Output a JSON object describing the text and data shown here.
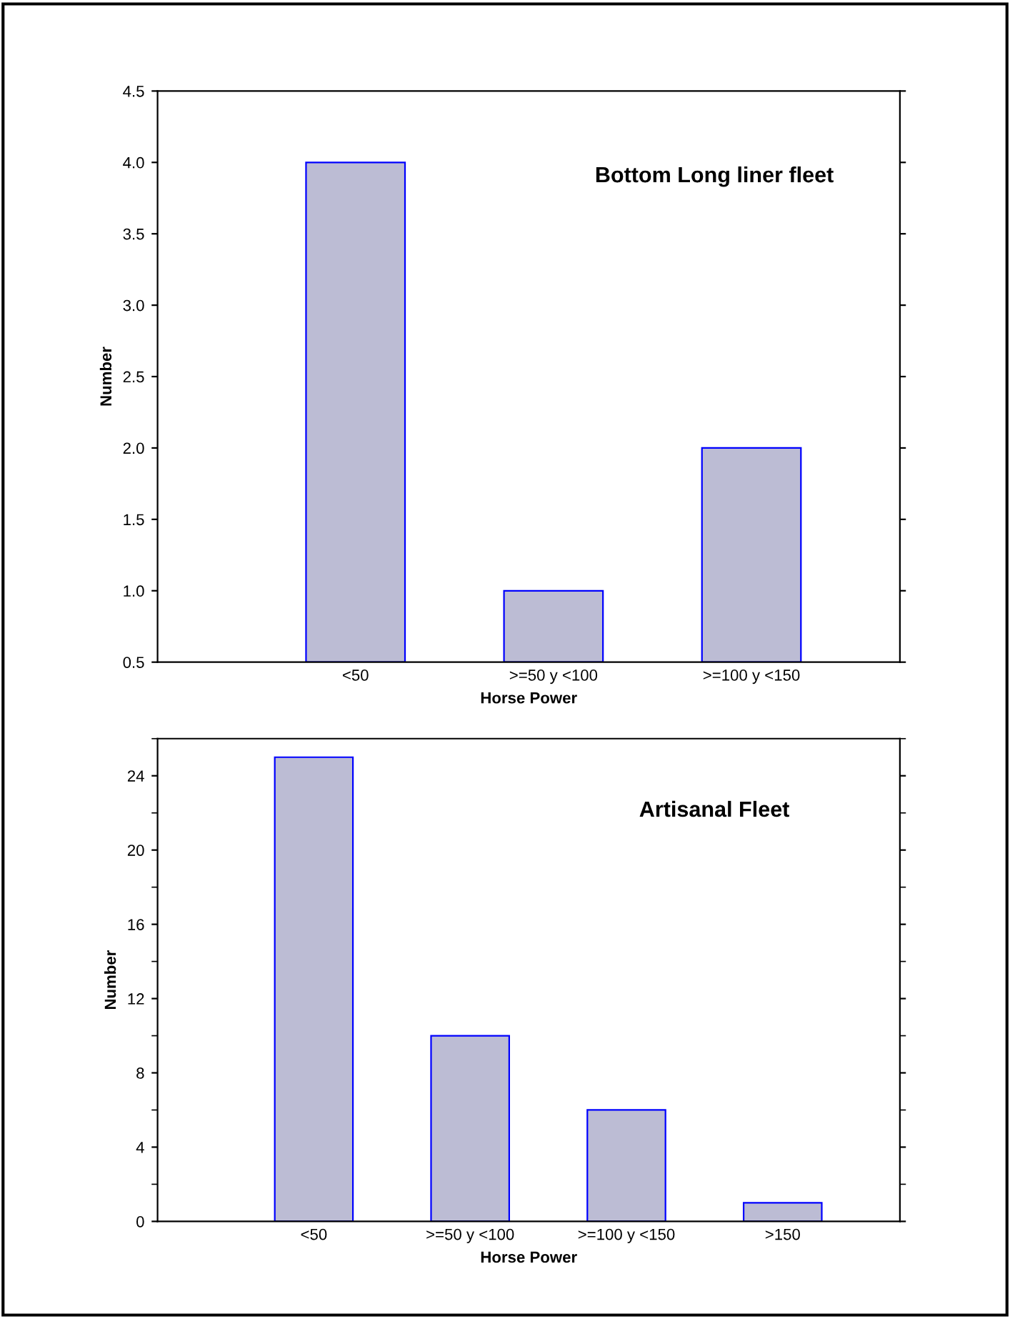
{
  "chart_data": [
    {
      "type": "bar",
      "title": "Bottom Long liner fleet",
      "xlabel": "Horse Power",
      "ylabel": "Number",
      "categories": [
        "<50",
        ">=50 y <100",
        ">=100 y <150"
      ],
      "series": [
        {
          "color": "#bcbcd4",
          "values": [
            4.0,
            1.0,
            2.0
          ]
        }
      ],
      "ylim": [
        0.5,
        4.5
      ],
      "yticks": [
        {
          "value": 0.5,
          "label": "0.5"
        },
        {
          "value": 1,
          "label": "1.0"
        },
        {
          "value": 1.5,
          "label": "1.5"
        },
        {
          "value": 2,
          "label": "2.0"
        },
        {
          "value": 2.5,
          "label": "2.5"
        },
        {
          "value": 3,
          "label": "3.0"
        },
        {
          "value": 3.5,
          "label": "3.5"
        },
        {
          "value": 4,
          "label": "4.0"
        },
        {
          "value": 4.5,
          "label": "4.5"
        }
      ],
      "grid": false,
      "legend": false
    },
    {
      "type": "bar",
      "title": "Artisanal Fleet",
      "xlabel": "Horse Power",
      "ylabel": "Number",
      "categories": [
        "<50",
        ">=50 y <100",
        ">=100 y <150",
        ">150"
      ],
      "series": [
        {
          "color": "#bcbcd4",
          "values": [
            25,
            10,
            6,
            1
          ]
        }
      ],
      "ylim": [
        0,
        26
      ],
      "yticks": [
        0,
        4,
        8,
        12,
        16,
        20,
        24
      ],
      "grid": false,
      "legend": false
    }
  ]
}
